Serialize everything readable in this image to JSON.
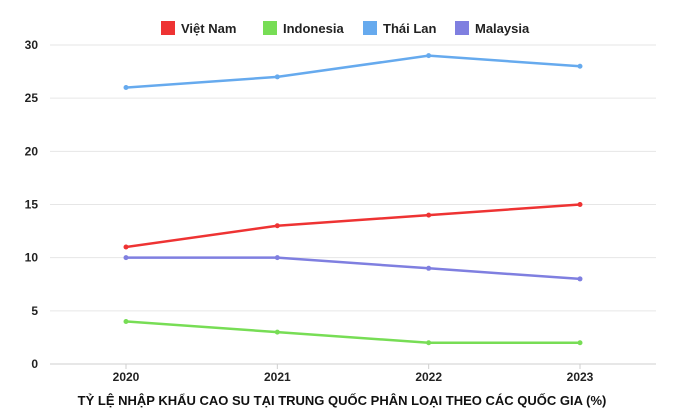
{
  "chart_data": {
    "type": "line",
    "title": "TỶ LỆ NHẬP KHẨU CAO SU TẠI TRUNG QUỐC PHÂN LOẠI THEO CÁC QUỐC GIA (%)",
    "categories": [
      "2020",
      "2021",
      "2022",
      "2023"
    ],
    "ylim": [
      0,
      30
    ],
    "yticks": [
      0,
      5,
      10,
      15,
      20,
      25,
      30
    ],
    "grid": true,
    "legend_position": "top",
    "series": [
      {
        "name": "Việt Nam",
        "color": "#ee3333",
        "values": [
          11,
          13,
          14,
          15
        ]
      },
      {
        "name": "Indonesia",
        "color": "#77dd55",
        "values": [
          4,
          3,
          2,
          2
        ]
      },
      {
        "name": "Thái Lan",
        "color": "#66aaee",
        "values": [
          26,
          27,
          29,
          28
        ]
      },
      {
        "name": "Malaysia",
        "color": "#7f7fe0",
        "values": [
          10,
          10,
          9,
          8
        ]
      }
    ]
  }
}
